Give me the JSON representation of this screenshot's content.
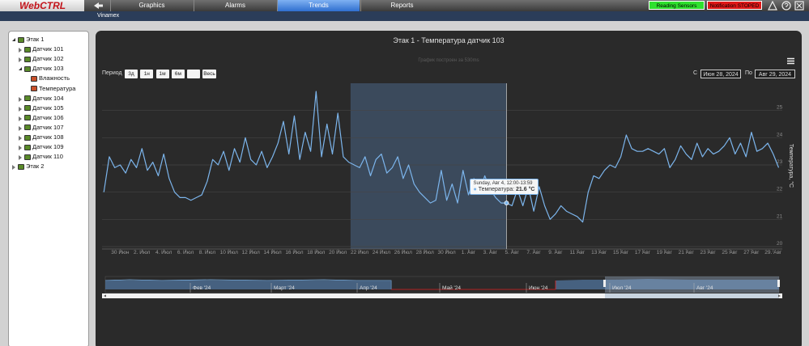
{
  "header": {
    "logo": "WebCTRL",
    "tabs": [
      "Graphics",
      "Alarms",
      "Trends",
      "Reports"
    ],
    "active_tab": "Trends",
    "status": [
      {
        "label": "Reading Sensors",
        "color": "#2ee02e"
      },
      {
        "label": "Notification STOPED",
        "color": "#e01818"
      }
    ],
    "location": "Vinamex"
  },
  "tree": [
    {
      "label": "Этак 1",
      "children": [
        {
          "label": "Датчик 101"
        },
        {
          "label": "Датчик 102"
        },
        {
          "label": "Датчик 103",
          "children": [
            {
              "label": "Влажность"
            },
            {
              "label": "Температура"
            }
          ]
        },
        {
          "label": "Датчик 104"
        },
        {
          "label": "Датчик 105"
        },
        {
          "label": "Датчик 106"
        },
        {
          "label": "Датчик 107"
        },
        {
          "label": "Датчик 108"
        },
        {
          "label": "Датчик 109"
        },
        {
          "label": "Датчик 110"
        }
      ]
    },
    {
      "label": "Этак 2"
    }
  ],
  "chart_data": {
    "type": "line",
    "title": "Этак 1 - Температура датчик 103",
    "subtitle": "График построен за 530ms",
    "range_selector": {
      "label": "Период",
      "ranges": [
        "3д",
        "1н",
        "1м",
        "6м"
      ],
      "all": "Весь",
      "from_label": "С",
      "from": "Июн 28, 2024",
      "to_label": "По",
      "to": "Авг 29, 2024"
    },
    "y_label": "Температура, °C",
    "xlim": [
      "2024-06-28T08:00",
      "2024-08-29T20:00"
    ],
    "xticks": [
      {
        "value": "2024-06-30T00:00",
        "label": "30 Июн"
      },
      {
        "value": "2024-07-02T00:00",
        "label": "2. Июл"
      },
      {
        "value": "2024-07-04T00:00",
        "label": "4. Июл"
      },
      {
        "value": "2024-07-06T00:00",
        "label": "6. Июл"
      },
      {
        "value": "2024-07-08T00:00",
        "label": "8. Июл"
      },
      {
        "value": "2024-07-10T00:00",
        "label": "10 Июл"
      },
      {
        "value": "2024-07-12T00:00",
        "label": "12 Июл"
      },
      {
        "value": "2024-07-14T00:00",
        "label": "14 Июл"
      },
      {
        "value": "2024-07-16T00:00",
        "label": "16 Июл"
      },
      {
        "value": "2024-07-18T00:00",
        "label": "18 Июл"
      },
      {
        "value": "2024-07-20T00:00",
        "label": "20 Июл"
      },
      {
        "value": "2024-07-22T00:00",
        "label": "22 Июл"
      },
      {
        "value": "2024-07-24T00:00",
        "label": "24 Июл"
      },
      {
        "value": "2024-07-26T00:00",
        "label": "26 Июл"
      },
      {
        "value": "2024-07-28T00:00",
        "label": "28 Июл"
      },
      {
        "value": "2024-07-30T00:00",
        "label": "30 Июл"
      },
      {
        "value": "2024-08-01T00:00",
        "label": "1. Авг"
      },
      {
        "value": "2024-08-03T00:00",
        "label": "3. Авг"
      },
      {
        "value": "2024-08-05T00:00",
        "label": "5. Авг"
      },
      {
        "value": "2024-08-07T00:00",
        "label": "7. Авг"
      },
      {
        "value": "2024-08-09T00:00",
        "label": "9. Авг"
      },
      {
        "value": "2024-08-11T00:00",
        "label": "11 Авг"
      },
      {
        "value": "2024-08-13T00:00",
        "label": "13 Авг"
      },
      {
        "value": "2024-08-15T00:00",
        "label": "15 Авг"
      },
      {
        "value": "2024-08-17T00:00",
        "label": "17 Авг"
      },
      {
        "value": "2024-08-19T00:00",
        "label": "19 Авг"
      },
      {
        "value": "2024-08-21T00:00",
        "label": "21 Авг"
      },
      {
        "value": "2024-08-23T00:00",
        "label": "23 Авг"
      },
      {
        "value": "2024-08-25T00:00",
        "label": "25 Авг"
      },
      {
        "value": "2024-08-27T00:00",
        "label": "27 Авг"
      },
      {
        "value": "2024-08-29T00:00",
        "label": "29. Авг"
      }
    ],
    "ylim": [
      20,
      26
    ],
    "yticks": [
      20,
      21,
      22,
      23,
      24,
      25
    ],
    "grid": true,
    "highlight": [
      "2024-07-21T04:00",
      "2024-08-04T12:00"
    ],
    "x": [
      "2024-06-28T12:00",
      "2024-06-29T00:00",
      "2024-06-29T12:00",
      "2024-06-30T00:00",
      "2024-06-30T12:00",
      "2024-07-01T00:00",
      "2024-07-01T12:00",
      "2024-07-02T00:00",
      "2024-07-02T12:00",
      "2024-07-03T00:00",
      "2024-07-03T12:00",
      "2024-07-04T00:00",
      "2024-07-04T12:00",
      "2024-07-05T00:00",
      "2024-07-05T12:00",
      "2024-07-06T00:00",
      "2024-07-06T12:00",
      "2024-07-07T00:00",
      "2024-07-07T12:00",
      "2024-07-08T00:00",
      "2024-07-08T12:00",
      "2024-07-09T00:00",
      "2024-07-09T12:00",
      "2024-07-10T00:00",
      "2024-07-10T12:00",
      "2024-07-11T00:00",
      "2024-07-11T12:00",
      "2024-07-12T00:00",
      "2024-07-12T12:00",
      "2024-07-13T00:00",
      "2024-07-13T12:00",
      "2024-07-14T00:00",
      "2024-07-14T12:00",
      "2024-07-15T00:00",
      "2024-07-15T12:00",
      "2024-07-16T00:00",
      "2024-07-16T12:00",
      "2024-07-17T00:00",
      "2024-07-17T12:00",
      "2024-07-18T00:00",
      "2024-07-18T12:00",
      "2024-07-19T00:00",
      "2024-07-19T12:00",
      "2024-07-20T00:00",
      "2024-07-20T12:00",
      "2024-07-21T00:00",
      "2024-07-21T12:00",
      "2024-07-22T00:00",
      "2024-07-22T12:00",
      "2024-07-23T00:00",
      "2024-07-23T12:00",
      "2024-07-24T00:00",
      "2024-07-24T12:00",
      "2024-07-25T00:00",
      "2024-07-25T12:00",
      "2024-07-26T00:00",
      "2024-07-26T12:00",
      "2024-07-27T00:00",
      "2024-07-27T12:00",
      "2024-07-28T00:00",
      "2024-07-28T12:00",
      "2024-07-29T00:00",
      "2024-07-29T12:00",
      "2024-07-30T00:00",
      "2024-07-30T12:00",
      "2024-07-31T00:00",
      "2024-07-31T12:00",
      "2024-08-01T00:00",
      "2024-08-01T12:00",
      "2024-08-02T00:00",
      "2024-08-02T12:00",
      "2024-08-03T00:00",
      "2024-08-03T12:00",
      "2024-08-04T00:00",
      "2024-08-04T12:00",
      "2024-08-05T00:00",
      "2024-08-05T12:00",
      "2024-08-06T00:00",
      "2024-08-06T12:00",
      "2024-08-07T00:00",
      "2024-08-07T12:00",
      "2024-08-08T00:00",
      "2024-08-08T12:00",
      "2024-08-09T00:00",
      "2024-08-09T12:00",
      "2024-08-10T00:00",
      "2024-08-10T12:00",
      "2024-08-11T00:00",
      "2024-08-11T12:00",
      "2024-08-12T00:00",
      "2024-08-12T12:00",
      "2024-08-13T00:00",
      "2024-08-13T12:00",
      "2024-08-14T00:00",
      "2024-08-14T12:00",
      "2024-08-15T00:00",
      "2024-08-15T12:00",
      "2024-08-16T00:00",
      "2024-08-16T12:00",
      "2024-08-17T00:00",
      "2024-08-17T12:00",
      "2024-08-18T00:00",
      "2024-08-18T12:00",
      "2024-08-19T00:00",
      "2024-08-19T12:00",
      "2024-08-20T00:00",
      "2024-08-20T12:00",
      "2024-08-21T00:00",
      "2024-08-21T12:00",
      "2024-08-22T00:00",
      "2024-08-22T12:00",
      "2024-08-23T00:00",
      "2024-08-23T12:00",
      "2024-08-24T00:00",
      "2024-08-24T12:00",
      "2024-08-25T00:00",
      "2024-08-25T12:00",
      "2024-08-26T00:00",
      "2024-08-26T12:00",
      "2024-08-27T00:00",
      "2024-08-27T12:00",
      "2024-08-28T00:00",
      "2024-08-28T12:00",
      "2024-08-29T00:00",
      "2024-08-29T12:00"
    ],
    "series": [
      {
        "name": "Температура",
        "color": "#7cb5ec",
        "values": [
          22.0,
          23.3,
          22.9,
          23.0,
          22.7,
          23.2,
          22.9,
          23.6,
          22.8,
          23.1,
          22.6,
          23.4,
          22.5,
          22.0,
          21.8,
          21.8,
          21.7,
          21.8,
          21.9,
          22.4,
          23.2,
          23.0,
          23.5,
          22.8,
          23.6,
          23.1,
          24.0,
          23.2,
          23.0,
          23.5,
          22.9,
          23.3,
          23.8,
          24.6,
          23.4,
          24.8,
          23.2,
          24.2,
          23.5,
          25.7,
          23.3,
          24.5,
          23.4,
          24.9,
          23.3,
          23.1,
          23.0,
          22.9,
          23.3,
          22.6,
          23.2,
          23.4,
          22.7,
          22.9,
          23.3,
          22.5,
          23.0,
          22.3,
          22.0,
          21.8,
          21.6,
          21.7,
          22.8,
          21.7,
          22.3,
          21.6,
          22.8,
          21.9,
          22.5,
          22.0,
          22.6,
          22.1,
          21.8,
          21.6,
          21.6,
          21.5,
          22.1,
          21.5,
          22.2,
          21.3,
          22.2,
          21.5,
          21.0,
          21.2,
          21.5,
          21.3,
          21.2,
          21.1,
          20.9,
          22.0,
          22.6,
          22.5,
          22.8,
          23.0,
          22.9,
          23.3,
          24.1,
          23.6,
          23.5,
          23.5,
          23.6,
          23.5,
          23.4,
          23.6,
          22.9,
          23.2,
          23.7,
          23.4,
          23.2,
          23.8,
          23.3,
          23.6,
          23.4,
          23.5,
          23.7,
          24.0,
          23.4,
          23.8,
          23.3,
          24.2,
          23.5,
          23.6,
          23.8,
          23.4,
          22.9
        ]
      }
    ],
    "tooltip": {
      "header": "Sunday, Авг 4, 12:00-13:59",
      "label": "Температура:",
      "x": "2024-08-04T12:00",
      "value": 21.6,
      "value_label": "21.6 °C"
    },
    "navigator": {
      "labels": [
        "Фев '24",
        "Март '24",
        "Апр '24",
        "Май '24",
        "Июн '24",
        "Июл '24",
        "Авг '24"
      ]
    }
  }
}
